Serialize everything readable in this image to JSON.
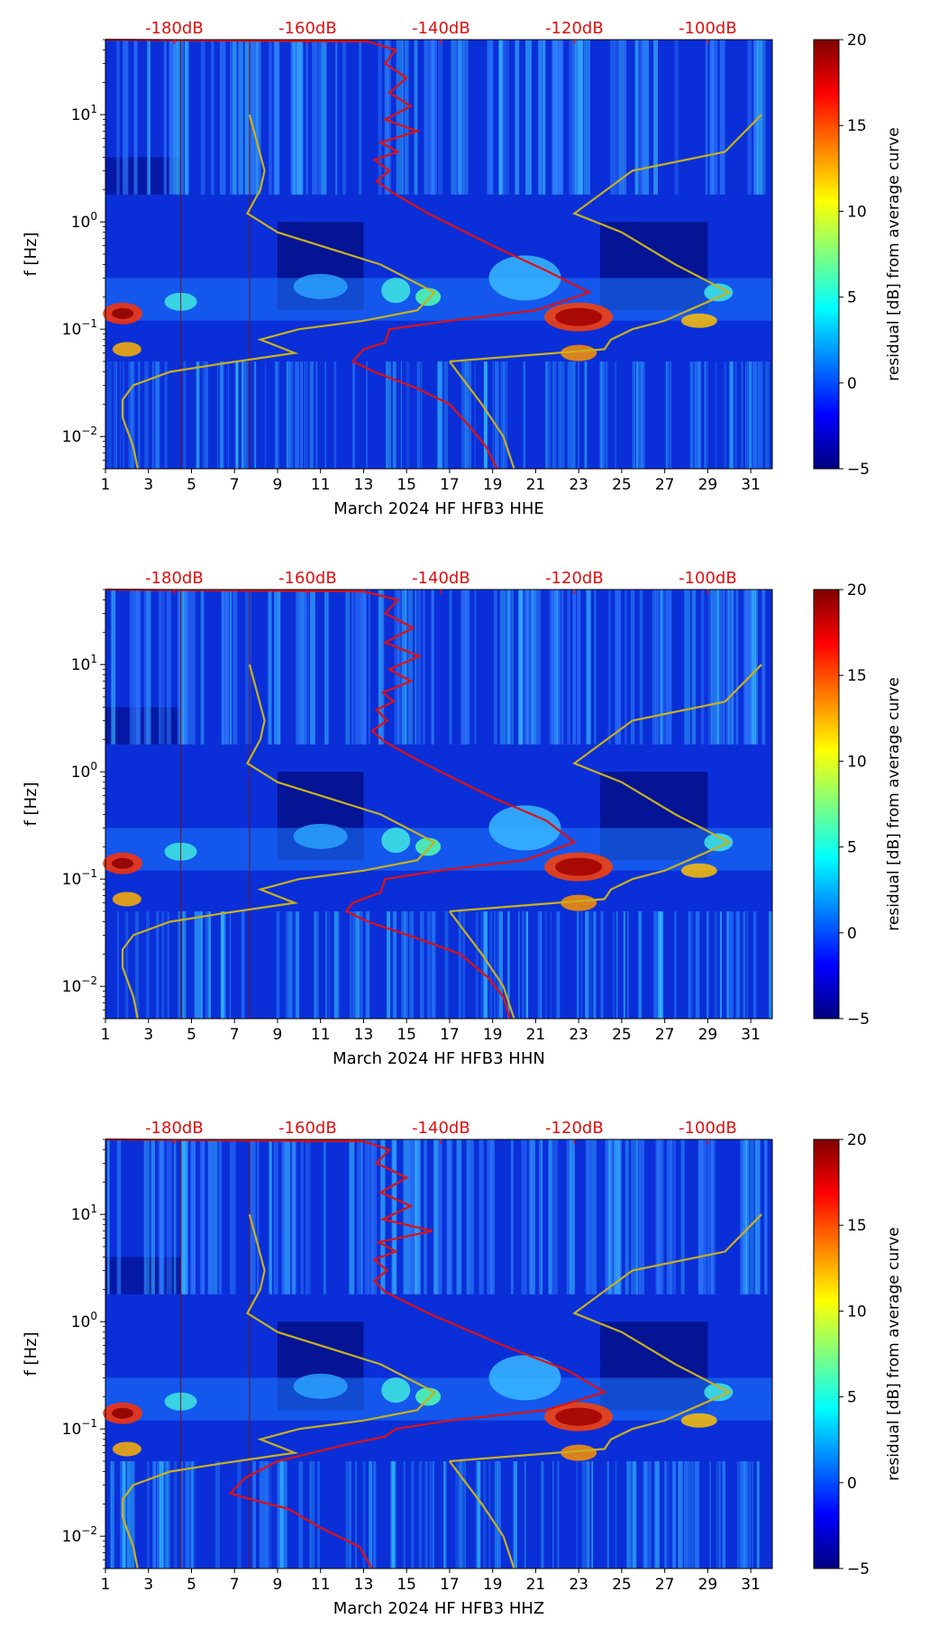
{
  "colors": {
    "psd_curve": "#e01010",
    "model_curve": "#c8b020",
    "db_label": "#e01010",
    "colormap": [
      "#00007f",
      "#0000ff",
      "#007fff",
      "#00ffff",
      "#7fff7f",
      "#ffff00",
      "#ff7f00",
      "#ff0000",
      "#7f0000"
    ]
  },
  "chart_data": [
    {
      "type": "heatmap",
      "xlabel": "March 2024 HF HFB3  HHE",
      "ylabel": "f [Hz]",
      "xlim": [
        1,
        32
      ],
      "ylim": [
        0.005,
        50
      ],
      "yscale": "log",
      "x_ticks": [
        1,
        3,
        5,
        7,
        9,
        11,
        13,
        15,
        17,
        19,
        21,
        23,
        25,
        27,
        29,
        31
      ],
      "y_ticks": [
        {
          "value": 0.01,
          "base": "10",
          "exp": "−2"
        },
        {
          "value": 0.1,
          "base": "10",
          "exp": "−1"
        },
        {
          "value": 1,
          "base": "10",
          "exp": "0"
        },
        {
          "value": 10,
          "base": "10",
          "exp": "1"
        }
      ],
      "top_ticks": [
        {
          "x": 4.2,
          "label": "-180dB"
        },
        {
          "x": 10.4,
          "label": "-160dB"
        },
        {
          "x": 16.6,
          "label": "-140dB"
        },
        {
          "x": 22.8,
          "label": "-120dB"
        },
        {
          "x": 29.0,
          "label": "-100dB"
        }
      ],
      "colorbar": {
        "label": "residual [dB] from average curve",
        "min": -5,
        "max": 20,
        "ticks": [
          -5,
          0,
          5,
          10,
          15,
          20
        ]
      },
      "curves": {
        "psd": [
          [
            1,
            50
          ],
          [
            13.2,
            48
          ],
          [
            14.5,
            40
          ],
          [
            14.0,
            30
          ],
          [
            15.0,
            22
          ],
          [
            14.2,
            16
          ],
          [
            15.2,
            12
          ],
          [
            14.0,
            9
          ],
          [
            15.5,
            7
          ],
          [
            13.8,
            5.5
          ],
          [
            14.6,
            4.5
          ],
          [
            13.5,
            3.8
          ],
          [
            14.2,
            3.0
          ],
          [
            13.6,
            2.4
          ],
          [
            14.3,
            1.9
          ],
          [
            16.0,
            1.2
          ],
          [
            19.0,
            0.6
          ],
          [
            21.5,
            0.35
          ],
          [
            23.5,
            0.22
          ],
          [
            21.0,
            0.15
          ],
          [
            17.0,
            0.12
          ],
          [
            14.2,
            0.1
          ],
          [
            14.0,
            0.075
          ],
          [
            13.0,
            0.065
          ],
          [
            12.5,
            0.05
          ],
          [
            13.5,
            0.04
          ],
          [
            15.5,
            0.028
          ],
          [
            17.0,
            0.02
          ],
          [
            18.0,
            0.012
          ],
          [
            18.7,
            0.008
          ],
          [
            19.2,
            0.005
          ]
        ],
        "model": [
          [
            2.5,
            0.005
          ],
          [
            2.3,
            0.008
          ],
          [
            1.8,
            0.015
          ],
          [
            1.8,
            0.022
          ],
          [
            2.3,
            0.03
          ],
          [
            4.0,
            0.04
          ],
          [
            6.5,
            0.048
          ],
          [
            8.5,
            0.055
          ],
          [
            9.8,
            0.06
          ],
          [
            8.2,
            0.08
          ],
          [
            10.0,
            0.1
          ],
          [
            13.0,
            0.12
          ],
          [
            15.5,
            0.15
          ],
          [
            16.3,
            0.22
          ],
          [
            13.8,
            0.4
          ],
          [
            9.0,
            0.8
          ],
          [
            7.6,
            1.2
          ],
          [
            8.2,
            2.0
          ],
          [
            8.4,
            3.0
          ],
          [
            8.0,
            6.0
          ],
          [
            7.7,
            10.0
          ],
          [
            17.0,
            0.05
          ],
          [
            24.2,
            0.065
          ],
          [
            24.5,
            0.08
          ],
          [
            25.5,
            0.1
          ],
          [
            27.0,
            0.12
          ],
          [
            30.0,
            0.22
          ],
          [
            27.5,
            0.4
          ],
          [
            25.0,
            0.8
          ],
          [
            22.8,
            1.2
          ],
          [
            25.5,
            3.0
          ],
          [
            29.8,
            4.5
          ],
          [
            31.5,
            10
          ]
        ],
        "model_low": [
          [
            17.0,
            0.05
          ],
          [
            18.5,
            0.02
          ],
          [
            19.5,
            0.01
          ],
          [
            20.0,
            0.005
          ]
        ]
      }
    },
    {
      "type": "heatmap",
      "xlabel": "March 2024 HF HFB3  HHN",
      "ylabel": "f [Hz]",
      "xlim": [
        1,
        32
      ],
      "ylim": [
        0.005,
        50
      ],
      "yscale": "log",
      "x_ticks": [
        1,
        3,
        5,
        7,
        9,
        11,
        13,
        15,
        17,
        19,
        21,
        23,
        25,
        27,
        29,
        31
      ],
      "y_ticks": [
        {
          "value": 0.01,
          "base": "10",
          "exp": "−2"
        },
        {
          "value": 0.1,
          "base": "10",
          "exp": "−1"
        },
        {
          "value": 1,
          "base": "10",
          "exp": "0"
        },
        {
          "value": 10,
          "base": "10",
          "exp": "1"
        }
      ],
      "top_ticks": [
        {
          "x": 4.2,
          "label": "-180dB"
        },
        {
          "x": 10.4,
          "label": "-160dB"
        },
        {
          "x": 16.6,
          "label": "-140dB"
        },
        {
          "x": 22.8,
          "label": "-120dB"
        },
        {
          "x": 29.0,
          "label": "-100dB"
        }
      ],
      "colorbar": {
        "label": "residual [dB] from average curve",
        "min": -5,
        "max": 20,
        "ticks": [
          -5,
          0,
          5,
          10,
          15,
          20
        ]
      },
      "curves": {
        "psd": [
          [
            1,
            50
          ],
          [
            13.0,
            48
          ],
          [
            14.6,
            40
          ],
          [
            14.0,
            30
          ],
          [
            15.3,
            22
          ],
          [
            14.0,
            16
          ],
          [
            15.6,
            12
          ],
          [
            14.2,
            9
          ],
          [
            15.2,
            7
          ],
          [
            13.9,
            5.5
          ],
          [
            14.4,
            4.5
          ],
          [
            13.6,
            3.8
          ],
          [
            14.1,
            3.0
          ],
          [
            13.4,
            2.4
          ],
          [
            14.0,
            1.9
          ],
          [
            15.8,
            1.2
          ],
          [
            18.8,
            0.6
          ],
          [
            21.5,
            0.35
          ],
          [
            22.8,
            0.22
          ],
          [
            20.5,
            0.15
          ],
          [
            16.5,
            0.12
          ],
          [
            14.0,
            0.1
          ],
          [
            13.8,
            0.075
          ],
          [
            12.5,
            0.06
          ],
          [
            12.2,
            0.05
          ],
          [
            13.2,
            0.04
          ],
          [
            15.5,
            0.028
          ],
          [
            17.5,
            0.02
          ],
          [
            18.8,
            0.012
          ],
          [
            19.5,
            0.008
          ],
          [
            19.8,
            0.005
          ]
        ],
        "model": [
          [
            2.5,
            0.005
          ],
          [
            2.3,
            0.008
          ],
          [
            1.8,
            0.015
          ],
          [
            1.8,
            0.022
          ],
          [
            2.3,
            0.03
          ],
          [
            4.0,
            0.04
          ],
          [
            6.5,
            0.048
          ],
          [
            8.5,
            0.055
          ],
          [
            9.8,
            0.06
          ],
          [
            8.2,
            0.08
          ],
          [
            10.0,
            0.1
          ],
          [
            13.0,
            0.12
          ],
          [
            15.5,
            0.15
          ],
          [
            16.3,
            0.22
          ],
          [
            13.8,
            0.4
          ],
          [
            9.0,
            0.8
          ],
          [
            7.6,
            1.2
          ],
          [
            8.2,
            2.0
          ],
          [
            8.4,
            3.0
          ],
          [
            8.0,
            6.0
          ],
          [
            7.7,
            10.0
          ],
          [
            17.0,
            0.05
          ],
          [
            24.2,
            0.065
          ],
          [
            24.5,
            0.08
          ],
          [
            25.5,
            0.1
          ],
          [
            27.0,
            0.12
          ],
          [
            30.0,
            0.22
          ],
          [
            27.5,
            0.4
          ],
          [
            25.0,
            0.8
          ],
          [
            22.8,
            1.2
          ],
          [
            25.5,
            3.0
          ],
          [
            29.8,
            4.5
          ],
          [
            31.5,
            10
          ]
        ],
        "model_low": [
          [
            17.0,
            0.05
          ],
          [
            18.5,
            0.02
          ],
          [
            19.5,
            0.01
          ],
          [
            20.0,
            0.005
          ]
        ]
      }
    },
    {
      "type": "heatmap",
      "xlabel": "March 2024 HF HFB3  HHZ",
      "ylabel": "f [Hz]",
      "xlim": [
        1,
        32
      ],
      "ylim": [
        0.005,
        50
      ],
      "yscale": "log",
      "x_ticks": [
        1,
        3,
        5,
        7,
        9,
        11,
        13,
        15,
        17,
        19,
        21,
        23,
        25,
        27,
        29,
        31
      ],
      "y_ticks": [
        {
          "value": 0.01,
          "base": "10",
          "exp": "−2"
        },
        {
          "value": 0.1,
          "base": "10",
          "exp": "−1"
        },
        {
          "value": 1,
          "base": "10",
          "exp": "0"
        },
        {
          "value": 10,
          "base": "10",
          "exp": "1"
        }
      ],
      "top_ticks": [
        {
          "x": 4.2,
          "label": "-180dB"
        },
        {
          "x": 10.4,
          "label": "-160dB"
        },
        {
          "x": 16.6,
          "label": "-140dB"
        },
        {
          "x": 22.8,
          "label": "-120dB"
        },
        {
          "x": 29.0,
          "label": "-100dB"
        }
      ],
      "colorbar": {
        "label": "residual [dB] from average curve",
        "min": -5,
        "max": 20,
        "ticks": [
          -5,
          0,
          5,
          10,
          15,
          20
        ]
      },
      "curves": {
        "psd": [
          [
            1,
            50
          ],
          [
            13.0,
            48
          ],
          [
            14.2,
            40
          ],
          [
            13.6,
            30
          ],
          [
            15.0,
            22
          ],
          [
            13.8,
            16
          ],
          [
            15.2,
            12
          ],
          [
            13.9,
            9
          ],
          [
            16.2,
            7
          ],
          [
            13.7,
            5.5
          ],
          [
            14.5,
            4.5
          ],
          [
            13.5,
            3.8
          ],
          [
            14.1,
            3.0
          ],
          [
            13.5,
            2.4
          ],
          [
            14.0,
            1.9
          ],
          [
            16.0,
            1.2
          ],
          [
            19.5,
            0.6
          ],
          [
            22.5,
            0.35
          ],
          [
            24.2,
            0.22
          ],
          [
            21.5,
            0.15
          ],
          [
            17.0,
            0.12
          ],
          [
            14.5,
            0.1
          ],
          [
            14.0,
            0.085
          ],
          [
            12.0,
            0.07
          ],
          [
            9.0,
            0.05
          ],
          [
            7.5,
            0.035
          ],
          [
            6.8,
            0.025
          ],
          [
            7.8,
            0.022
          ],
          [
            9.5,
            0.018
          ],
          [
            11.0,
            0.012
          ],
          [
            12.8,
            0.008
          ],
          [
            13.4,
            0.005
          ]
        ],
        "model": [
          [
            2.5,
            0.005
          ],
          [
            2.3,
            0.008
          ],
          [
            1.8,
            0.015
          ],
          [
            1.8,
            0.022
          ],
          [
            2.3,
            0.03
          ],
          [
            4.0,
            0.04
          ],
          [
            6.5,
            0.048
          ],
          [
            8.5,
            0.055
          ],
          [
            9.8,
            0.06
          ],
          [
            8.2,
            0.08
          ],
          [
            10.0,
            0.1
          ],
          [
            13.0,
            0.12
          ],
          [
            15.5,
            0.15
          ],
          [
            16.3,
            0.22
          ],
          [
            13.8,
            0.4
          ],
          [
            9.0,
            0.8
          ],
          [
            7.6,
            1.2
          ],
          [
            8.2,
            2.0
          ],
          [
            8.4,
            3.0
          ],
          [
            8.0,
            6.0
          ],
          [
            7.7,
            10.0
          ],
          [
            17.0,
            0.05
          ],
          [
            24.2,
            0.065
          ],
          [
            24.5,
            0.08
          ],
          [
            25.5,
            0.1
          ],
          [
            27.0,
            0.12
          ],
          [
            30.0,
            0.22
          ],
          [
            27.5,
            0.4
          ],
          [
            25.0,
            0.8
          ],
          [
            22.8,
            1.2
          ],
          [
            25.5,
            3.0
          ],
          [
            29.8,
            4.5
          ],
          [
            31.5,
            10
          ]
        ],
        "model_low": [
          [
            17.0,
            0.05
          ],
          [
            18.5,
            0.02
          ],
          [
            19.5,
            0.01
          ],
          [
            20.0,
            0.005
          ]
        ]
      }
    }
  ]
}
